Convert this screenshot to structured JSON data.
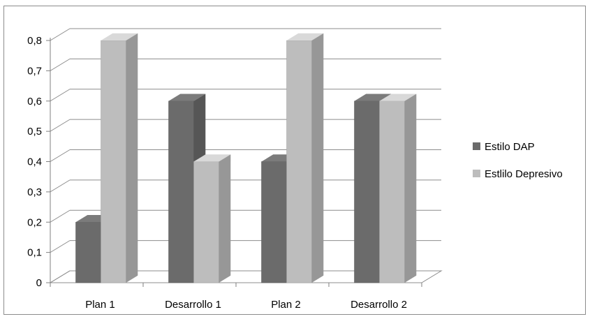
{
  "chart_data": {
    "type": "bar",
    "categories": [
      "Plan 1",
      "Desarrollo 1",
      "Plan 2",
      "Desarrollo 2"
    ],
    "series": [
      {
        "name": "Estilo DAP",
        "values": [
          0.2,
          0.6,
          0.4,
          0.6
        ],
        "color": "#6b6b6b"
      },
      {
        "name": "Estlilo Depresivo",
        "values": [
          0.8,
          0.4,
          0.8,
          0.6
        ],
        "color": "#bdbdbd"
      }
    ],
    "ylim": [
      0,
      0.8
    ],
    "yticks": [
      "0",
      "0,1",
      "0,2",
      "0,3",
      "0,4",
      "0,5",
      "0,6",
      "0,7",
      "0,8"
    ],
    "grid": true,
    "legend_position": "right",
    "style": "3d"
  }
}
